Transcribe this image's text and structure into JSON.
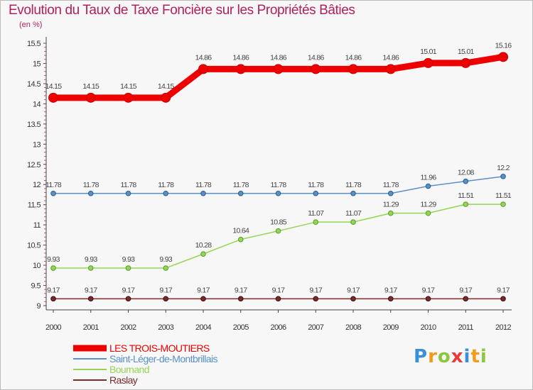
{
  "title": "Evolution du Taux de Taxe Foncière sur les Propriétés Bâties",
  "unit": "(en %)",
  "logo": {
    "letters": [
      "P",
      "r",
      "o",
      "x",
      "i",
      "t",
      "i"
    ],
    "colors": [
      "#3a8fd6",
      "#f29a1c",
      "#8cc63e",
      "#e23d3d",
      "#3a8fd6",
      "#f29a1c",
      "#8cc63e"
    ]
  },
  "chart_data": {
    "type": "line",
    "title": "Evolution du Taux de Taxe Foncière sur les Propriétés Bâties",
    "ylabel": "(en %)",
    "xlabel": "",
    "x": [
      "2000",
      "2001",
      "2002",
      "2003",
      "2004",
      "2005",
      "2006",
      "2007",
      "2008",
      "2009",
      "2010",
      "2011",
      "2012"
    ],
    "ylim": [
      9,
      15.5
    ],
    "yticks": [
      "9",
      "9.5",
      "10",
      "10.5",
      "11",
      "11.5",
      "12",
      "12.5",
      "13",
      "13.5",
      "14",
      "14.5",
      "15",
      "15.5"
    ],
    "series": [
      {
        "name": "LES TROIS-MOUTIERS",
        "color": "#ee0000",
        "values": [
          14.15,
          14.15,
          14.15,
          14.15,
          14.86,
          14.86,
          14.86,
          14.86,
          14.86,
          14.86,
          15.01,
          15.01,
          15.16
        ],
        "labels": [
          "14.15",
          "14.15",
          "14.15",
          "14.15",
          "14.86",
          "14.86",
          "14.86",
          "14.86",
          "14.86",
          "14.86",
          "15.01",
          "15.01",
          "15.16"
        ]
      },
      {
        "name": "Saint-Léger-de-Montbrillais",
        "color": "#5a90c8",
        "values": [
          11.78,
          11.78,
          11.78,
          11.78,
          11.78,
          11.78,
          11.78,
          11.78,
          11.78,
          11.78,
          11.96,
          12.08,
          12.2
        ],
        "labels": [
          "11.78",
          "11.78",
          "11.78",
          "11.78",
          "11.78",
          "11.78",
          "11.78",
          "11.78",
          "11.78",
          "11.78",
          "11.96",
          "12.08",
          "12.2"
        ]
      },
      {
        "name": "Bournand",
        "color": "#94d654",
        "values": [
          9.93,
          9.93,
          9.93,
          9.93,
          10.28,
          10.64,
          10.85,
          11.07,
          11.07,
          11.29,
          11.29,
          11.51,
          11.51
        ],
        "labels": [
          "9.93",
          "9.93",
          "9.93",
          "9.93",
          "10.28",
          "10.64",
          "10.85",
          "11.07",
          "11.07",
          "11.29",
          "11.29",
          "11.51",
          "11.51"
        ]
      },
      {
        "name": "Raslay",
        "color": "#7a2a2a",
        "values": [
          9.17,
          9.17,
          9.17,
          9.17,
          9.17,
          9.17,
          9.17,
          9.17,
          9.17,
          9.17,
          9.17,
          9.17,
          9.17
        ],
        "labels": [
          "9.17",
          "9.17",
          "9.17",
          "9.17",
          "9.17",
          "9.17",
          "9.17",
          "9.17",
          "9.17",
          "9.17",
          "9.17",
          "9.17",
          "9.17"
        ]
      }
    ],
    "legend": [
      "LES TROIS-MOUTIERS",
      "Saint-Léger-de-Montbrillais",
      "Bournand",
      "Raslay"
    ],
    "legend_position": "bottom-left",
    "grid": false
  }
}
